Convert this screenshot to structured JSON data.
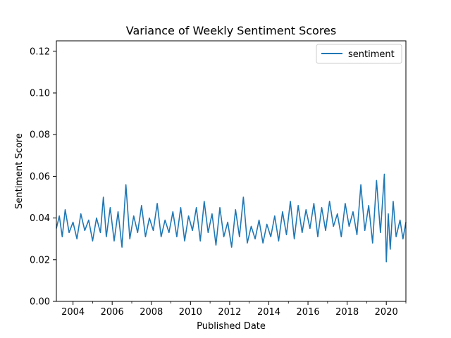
{
  "chart_data": {
    "type": "line",
    "title": "Variance of Weekly Sentiment Scores",
    "xlabel": "Published Date",
    "ylabel": "Sentiment Score",
    "xlim": [
      2003.15,
      2021.0
    ],
    "ylim": [
      0.0,
      0.125
    ],
    "xticks": [
      2004,
      2006,
      2008,
      2010,
      2012,
      2014,
      2016,
      2018,
      2020
    ],
    "xtick_labels": [
      "2004",
      "2006",
      "2008",
      "2010",
      "2012",
      "2014",
      "2016",
      "2018",
      "2020"
    ],
    "yticks": [
      0.0,
      0.02,
      0.04,
      0.06,
      0.08,
      0.1,
      0.12
    ],
    "ytick_labels": [
      "0.00",
      "0.02",
      "0.04",
      "0.06",
      "0.08",
      "0.10",
      "0.12"
    ],
    "legend": {
      "position": "top-right",
      "entries": [
        "sentiment"
      ]
    },
    "series": [
      {
        "name": "sentiment",
        "color": "#1f77b4",
        "x": [
          2003.15,
          2003.3,
          2003.45,
          2003.6,
          2003.8,
          2004.0,
          2004.2,
          2004.4,
          2004.6,
          2004.8,
          2005.0,
          2005.2,
          2005.4,
          2005.55,
          2005.7,
          2005.9,
          2006.1,
          2006.3,
          2006.5,
          2006.7,
          2006.9,
          2007.1,
          2007.3,
          2007.5,
          2007.7,
          2007.9,
          2008.1,
          2008.3,
          2008.5,
          2008.7,
          2008.9,
          2009.1,
          2009.3,
          2009.5,
          2009.7,
          2009.9,
          2010.1,
          2010.3,
          2010.5,
          2010.7,
          2010.9,
          2011.1,
          2011.3,
          2011.5,
          2011.7,
          2011.9,
          2012.1,
          2012.3,
          2012.5,
          2012.7,
          2012.9,
          2013.1,
          2013.3,
          2013.5,
          2013.7,
          2013.9,
          2014.1,
          2014.3,
          2014.5,
          2014.7,
          2014.9,
          2015.1,
          2015.3,
          2015.5,
          2015.7,
          2015.9,
          2016.1,
          2016.3,
          2016.5,
          2016.7,
          2016.9,
          2017.1,
          2017.3,
          2017.5,
          2017.7,
          2017.9,
          2018.1,
          2018.3,
          2018.5,
          2018.7,
          2018.9,
          2019.1,
          2019.3,
          2019.5,
          2019.7,
          2019.9,
          2020.0,
          2020.1,
          2020.2,
          2020.35,
          2020.5,
          2020.7,
          2020.85,
          2021.0
        ],
        "y": [
          0.035,
          0.041,
          0.031,
          0.044,
          0.033,
          0.038,
          0.03,
          0.042,
          0.034,
          0.039,
          0.029,
          0.04,
          0.033,
          0.05,
          0.031,
          0.045,
          0.029,
          0.043,
          0.026,
          0.056,
          0.03,
          0.041,
          0.033,
          0.046,
          0.031,
          0.04,
          0.034,
          0.047,
          0.031,
          0.039,
          0.033,
          0.043,
          0.031,
          0.045,
          0.029,
          0.041,
          0.034,
          0.045,
          0.029,
          0.048,
          0.033,
          0.042,
          0.027,
          0.045,
          0.031,
          0.038,
          0.026,
          0.044,
          0.031,
          0.05,
          0.028,
          0.036,
          0.03,
          0.039,
          0.028,
          0.037,
          0.031,
          0.041,
          0.029,
          0.043,
          0.032,
          0.048,
          0.03,
          0.046,
          0.033,
          0.044,
          0.035,
          0.047,
          0.031,
          0.045,
          0.034,
          0.048,
          0.036,
          0.042,
          0.031,
          0.047,
          0.036,
          0.043,
          0.032,
          0.056,
          0.034,
          0.046,
          0.028,
          0.058,
          0.033,
          0.061,
          0.019,
          0.042,
          0.025,
          0.048,
          0.031,
          0.039,
          0.03,
          0.038
        ]
      }
    ]
  }
}
